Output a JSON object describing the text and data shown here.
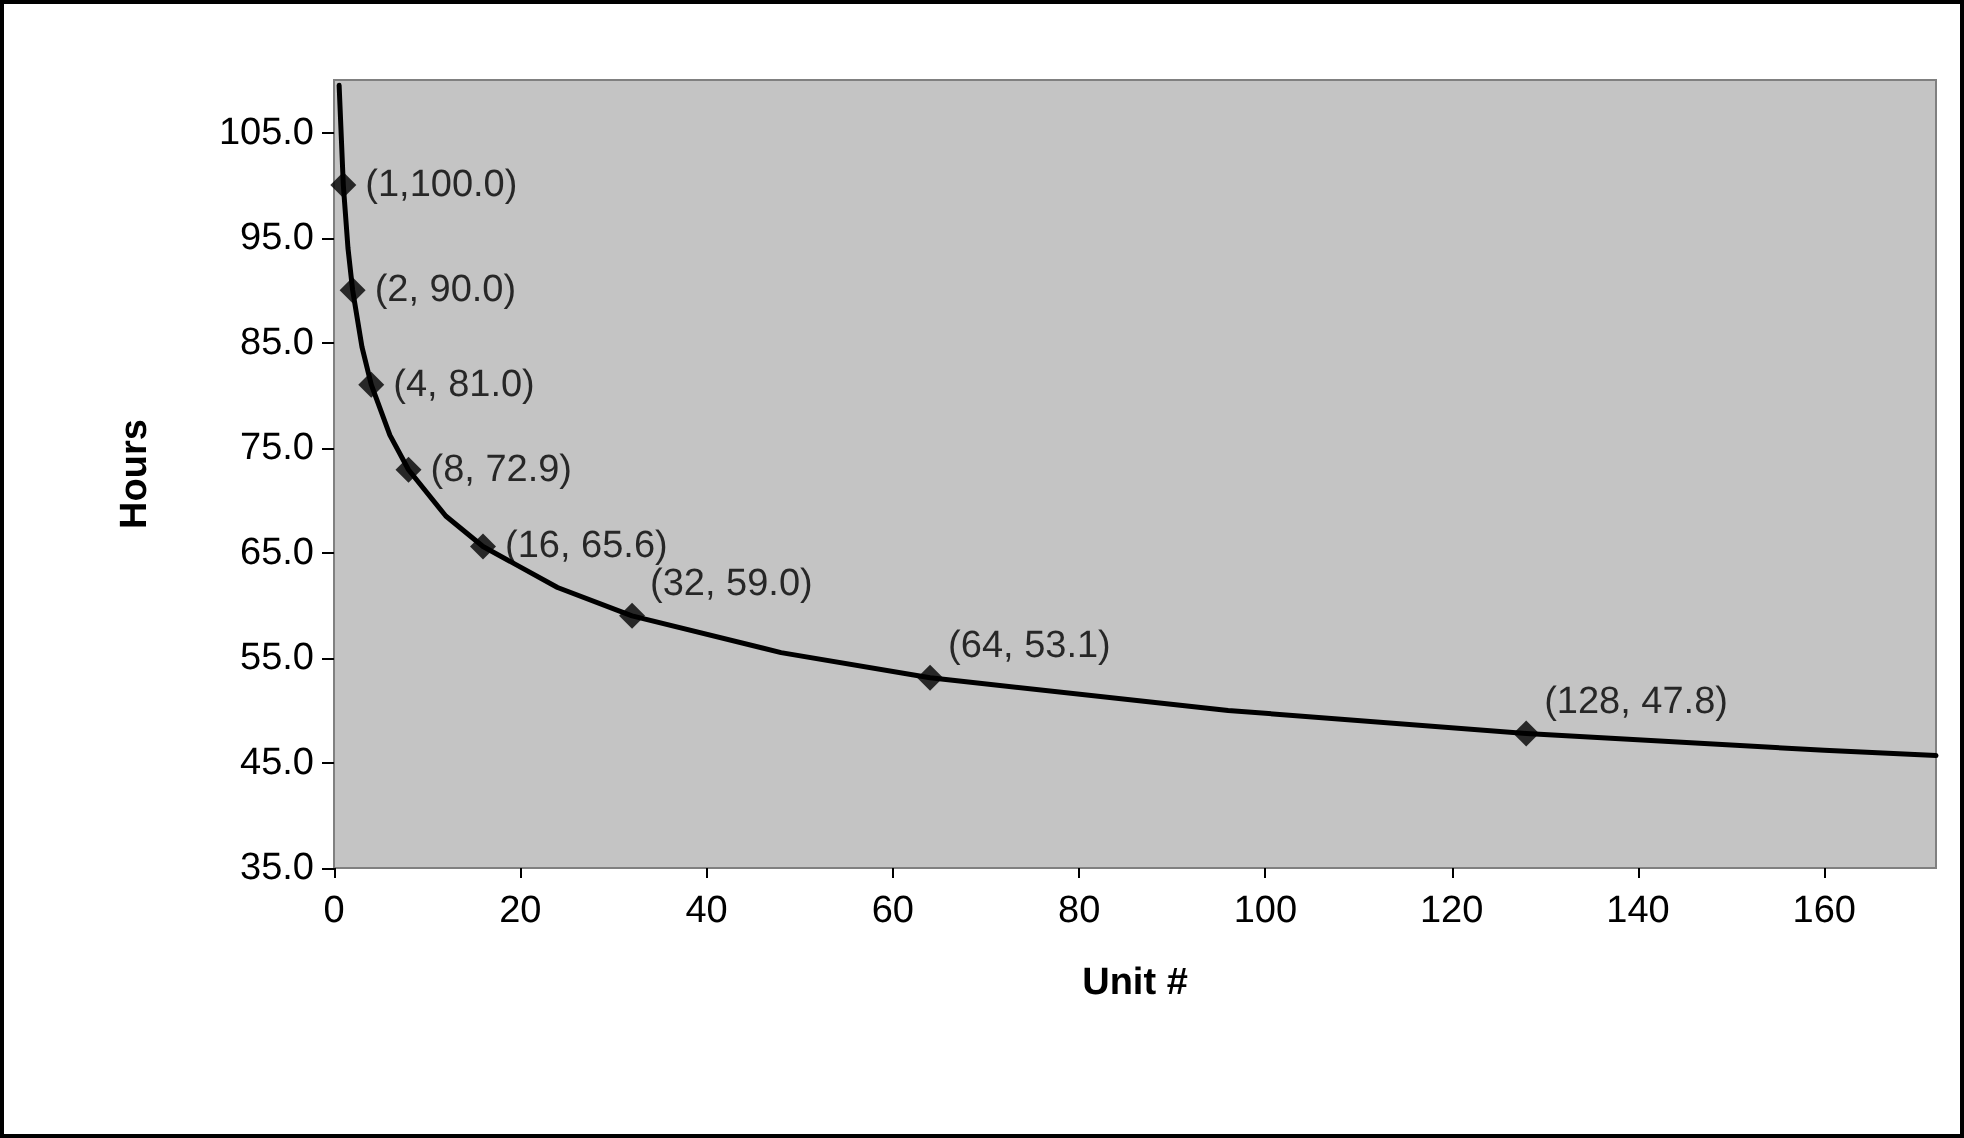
{
  "chart_data": {
    "type": "line",
    "xlabel": "Unit #",
    "ylabel": "Hours",
    "xlim": [
      0,
      172
    ],
    "ylim": [
      35,
      110
    ],
    "xticks": [
      0,
      20,
      40,
      60,
      80,
      100,
      120,
      140,
      160
    ],
    "yticks": [
      {
        "value": 35,
        "label": "35.0"
      },
      {
        "value": 45,
        "label": "45.0"
      },
      {
        "value": 55,
        "label": "55.0"
      },
      {
        "value": 65,
        "label": "65.0"
      },
      {
        "value": 75,
        "label": "75.0"
      },
      {
        "value": 85,
        "label": "85.0"
      },
      {
        "value": 95,
        "label": "95.0"
      },
      {
        "value": 105,
        "label": "105.0"
      }
    ],
    "grid": false,
    "series": [
      {
        "color": "#000000",
        "marker": "none",
        "x": [
          0.55,
          1,
          1.5,
          2,
          3,
          4,
          6,
          8,
          12,
          16,
          24,
          32,
          48,
          64,
          96,
          128,
          160,
          172
        ],
        "values": [
          109.5,
          100,
          94.0,
          90,
          84.6,
          81,
          76.2,
          72.9,
          68.5,
          65.6,
          61.7,
          59.0,
          55.5,
          53.1,
          50.0,
          47.8,
          46.2,
          45.7
        ]
      },
      {
        "type": "scatter",
        "color": "#000000",
        "marker": "diamond",
        "x": [
          1,
          2,
          4,
          8,
          16,
          32,
          64,
          128
        ],
        "values": [
          100,
          90,
          81,
          72.9,
          65.6,
          59.0,
          53.1,
          47.8
        ]
      }
    ],
    "annotations": [
      {
        "text": "(1,100.0)",
        "x": 1,
        "y": 100
      },
      {
        "text": "(2, 90.0)",
        "x": 2,
        "y": 90
      },
      {
        "text": "(4, 81.0)",
        "x": 4,
        "y": 81
      },
      {
        "text": "(8, 72.9)",
        "x": 8,
        "y": 72.9
      },
      {
        "text": "(16, 65.6)",
        "x": 16,
        "y": 65.6
      },
      {
        "text": "(32, 59.0)",
        "x": 32,
        "y": 59.0
      },
      {
        "text": "(64, 53.1)",
        "x": 64,
        "y": 53.1
      },
      {
        "text": "(128, 47.8)",
        "x": 128,
        "y": 47.8
      }
    ]
  }
}
